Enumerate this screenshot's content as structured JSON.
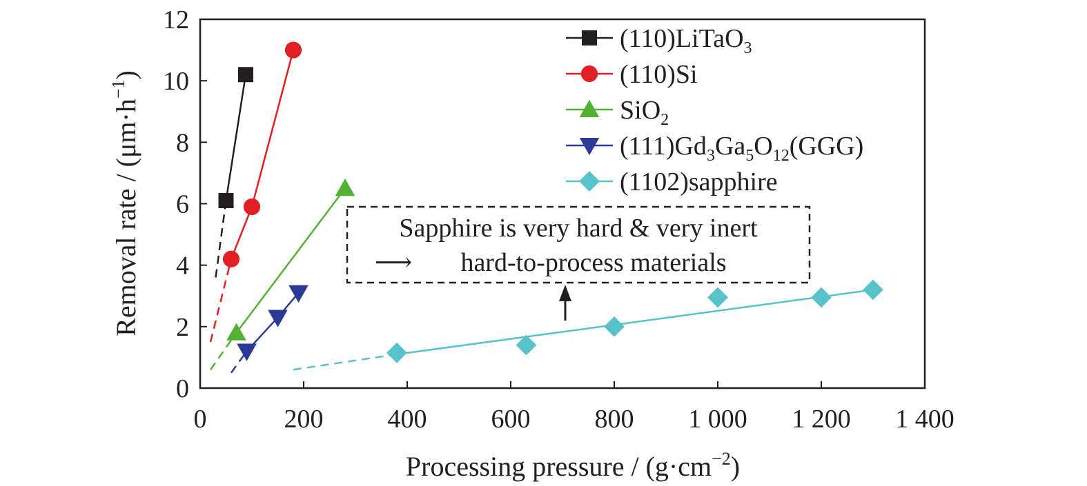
{
  "chart_data": {
    "type": "scatter",
    "xlabel_text": "Processing pressure / (g·cm",
    "xlabel_sup": "−2",
    "xlabel_close": ")",
    "ylabel_text": "Removal rate / (μm·h",
    "ylabel_sup": "−1",
    "ylabel_close": ")",
    "xlim": [
      0,
      1400
    ],
    "ylim": [
      0,
      12
    ],
    "x_ticks": [
      0,
      200,
      400,
      600,
      800,
      1000,
      1200,
      1400
    ],
    "x_tick_labels": [
      "0",
      "200",
      "400",
      "600",
      "800",
      "1 000",
      "1 200",
      "1 400"
    ],
    "y_ticks": [
      0,
      2,
      4,
      6,
      8,
      10,
      12
    ],
    "y_tick_labels": [
      "0",
      "2",
      "4",
      "6",
      "8",
      "10",
      "12"
    ],
    "grid": false,
    "legend_position": "top-right",
    "series": [
      {
        "name": "(110)LiTaO3",
        "legend_parts": [
          [
            "(110)LiTaO",
            ""
          ],
          [
            "3",
            "sub"
          ]
        ],
        "color": "#231f20",
        "marker": "square",
        "x": [
          50,
          88
        ],
        "y": [
          6.1,
          10.2
        ],
        "dashed_extension": [
          [
            30,
            3.6
          ],
          [
            50,
            6.1
          ]
        ]
      },
      {
        "name": "(110)Si",
        "legend_parts": [
          [
            "(110)Si",
            ""
          ]
        ],
        "color": "#e31e24",
        "marker": "circle",
        "x": [
          60,
          100,
          180
        ],
        "y": [
          4.2,
          5.9,
          11.0
        ],
        "dashed_extension": [
          [
            20,
            1.5
          ],
          [
            60,
            4.2
          ]
        ]
      },
      {
        "name": "SiO2",
        "legend_parts": [
          [
            "SiO",
            ""
          ],
          [
            "2",
            "sub"
          ]
        ],
        "color": "#52b033",
        "marker": "triangle-up",
        "x": [
          70,
          280
        ],
        "y": [
          1.8,
          6.5
        ],
        "dashed_extension": [
          [
            20,
            0.6
          ],
          [
            70,
            1.8
          ]
        ]
      },
      {
        "name": "(111)Gd3Ga5O12(GGG)",
        "legend_parts": [
          [
            "(111)Gd",
            ""
          ],
          [
            "3",
            "sub"
          ],
          [
            "Ga",
            ""
          ],
          [
            "5",
            "sub"
          ],
          [
            "O",
            ""
          ],
          [
            "12",
            "sub"
          ],
          [
            "(GGG)",
            ""
          ]
        ],
        "color": "#2b3a97",
        "marker": "triangle-down",
        "x": [
          90,
          150,
          190
        ],
        "y": [
          1.2,
          2.3,
          3.1
        ],
        "dashed_extension": [
          [
            60,
            0.5
          ],
          [
            90,
            1.2
          ]
        ]
      },
      {
        "name": "(1102)sapphire",
        "legend_parts": [
          [
            "(1102)sapphire",
            ""
          ]
        ],
        "color": "#55c3c8",
        "marker": "diamond",
        "x": [
          380,
          630,
          800,
          1000,
          1200,
          1300
        ],
        "y": [
          1.15,
          1.4,
          2.0,
          2.95,
          2.95,
          3.2
        ],
        "fit_line": [
          [
            380,
            1.1
          ],
          [
            1300,
            3.2
          ]
        ],
        "dashed_extension": [
          [
            180,
            0.6
          ],
          [
            380,
            1.1
          ]
        ]
      }
    ],
    "annotation": {
      "line1": "Sapphire is very hard & very inert",
      "arrow_glyph": "⟶",
      "line2": "hard-to-process materials"
    }
  }
}
